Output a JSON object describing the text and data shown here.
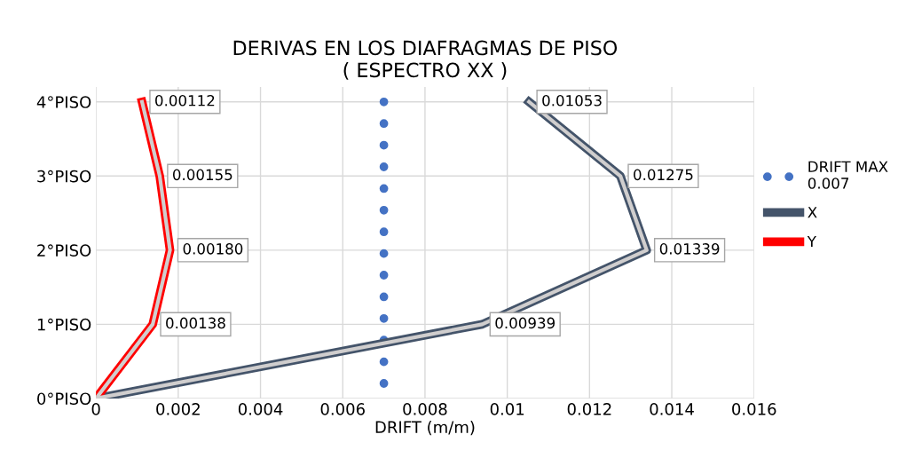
{
  "chart_data": {
    "type": "line",
    "title": "DERIVAS EN LOS DIAFRAGMAS DE PISO\n( ESPECTRO XX )",
    "xlabel": "DRIFT (m/m)",
    "orientation": "horizontal",
    "categories": [
      "4°PISO",
      "3°PISO",
      "2°PISO",
      "1°PISO",
      "0°PISO"
    ],
    "xlim": [
      0,
      0.016
    ],
    "xticks": [
      {
        "value": 0,
        "label": "0"
      },
      {
        "value": 0.002,
        "label": "0.002"
      },
      {
        "value": 0.004,
        "label": "0.004"
      },
      {
        "value": 0.006,
        "label": "0.006"
      },
      {
        "value": 0.008,
        "label": "0.008"
      },
      {
        "value": 0.01,
        "label": "0.01"
      },
      {
        "value": 0.012,
        "label": "0.012"
      },
      {
        "value": 0.014,
        "label": "0.014"
      },
      {
        "value": 0.016,
        "label": "0.016"
      }
    ],
    "series": [
      {
        "name": "DRIFT MAX 0.007",
        "color": "#4472c4",
        "values": [
          0.007,
          0.007,
          0.007,
          0.007,
          0.007
        ],
        "line_style": "dotted"
      },
      {
        "name": "X",
        "color": "#44546a",
        "values": [
          0.01053,
          0.01275,
          0.01339,
          0.00939,
          0
        ],
        "value_labels": [
          "0.01053",
          "0.01275",
          "0.01339",
          "0.00939",
          null
        ]
      },
      {
        "name": "Y",
        "color": "#ff0000",
        "values": [
          0.00112,
          0.00155,
          0.0018,
          0.00138,
          0
        ],
        "value_labels": [
          "0.00112",
          "0.00155",
          "0.00180",
          "0.00138",
          null
        ]
      }
    ],
    "grid": true,
    "legend": "right"
  }
}
